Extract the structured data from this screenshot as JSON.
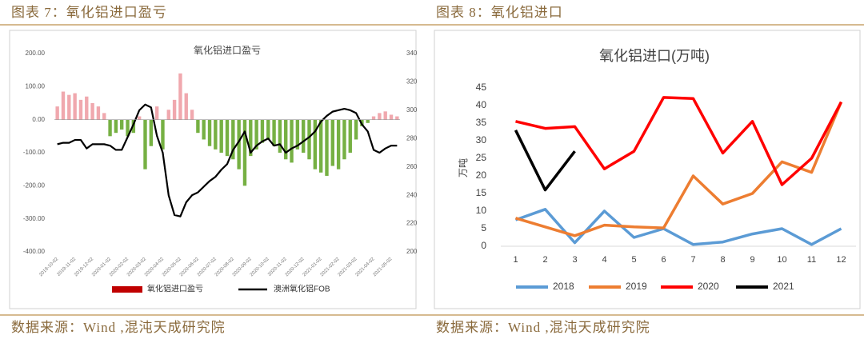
{
  "headings": [
    "图表 7：氧化铝进口盈亏",
    "图表 8：氧化铝进口"
  ],
  "sources": [
    "数据来源：Wind ,混沌天成研究院",
    "数据来源：Wind ,混沌天成研究院"
  ],
  "chart_data": [
    {
      "type": "bar",
      "title": "氧化铝进口盈亏",
      "categories": [
        "2019-10-02",
        null,
        null,
        "2019-11-02",
        null,
        null,
        "2019-12-02",
        null,
        null,
        "2020-01-02",
        null,
        null,
        "2020-02-02",
        null,
        null,
        "2020-03-02",
        null,
        null,
        "2020-04-02",
        null,
        null,
        "2020-05-02",
        null,
        null,
        "2020-06-02",
        null,
        null,
        "2020-07-02",
        null,
        null,
        "2020-08-02",
        null,
        null,
        "2020-09-02",
        null,
        null,
        "2020-10-02",
        null,
        null,
        "2020-11-02",
        null,
        null,
        "2020-12-02",
        null,
        null,
        "2021-01-02",
        null,
        null,
        "2021-02-02",
        null,
        null,
        "2021-03-02",
        null,
        null,
        "2021-04-02",
        null,
        null,
        "2021-05-02",
        null
      ],
      "series": [
        {
          "name": "氧化铝进口盈亏",
          "color": "#c00000",
          "positive_color": "#f0a8ae",
          "negative_color": "#76b043",
          "values": [
            40,
            85,
            75,
            80,
            60,
            70,
            50,
            40,
            20,
            -50,
            -40,
            -30,
            -50,
            -40,
            10,
            -150,
            -80,
            40,
            -90,
            30,
            60,
            140,
            80,
            30,
            -40,
            -60,
            -80,
            -90,
            -100,
            -110,
            -120,
            -150,
            -200,
            -110,
            -90,
            -70,
            -60,
            -80,
            -100,
            -120,
            -130,
            -90,
            -100,
            -120,
            -150,
            -160,
            -170,
            -140,
            -150,
            -120,
            -100,
            -60,
            -20,
            -10,
            10,
            20,
            25,
            15,
            10
          ]
        },
        {
          "name": "澳洲氧化铝FOB",
          "type": "line",
          "axis": "y2",
          "color": "#000000",
          "values": [
            276,
            277,
            277,
            279,
            279,
            273,
            276,
            276,
            276,
            275,
            272,
            272,
            281,
            290,
            300,
            304,
            302,
            282,
            270,
            240,
            226,
            225,
            235,
            240,
            242,
            246,
            250,
            253,
            258,
            262,
            272,
            278,
            285,
            270,
            275,
            278,
            280,
            275,
            276,
            270,
            273,
            275,
            278,
            281,
            285,
            292,
            296,
            299,
            300,
            301,
            300,
            298,
            290,
            285,
            272,
            270,
            273,
            275,
            275
          ]
        }
      ],
      "ylim": [
        -400,
        200
      ],
      "yticks": [
        {
          "value": -400,
          "label": "-400.00"
        },
        {
          "value": -300,
          "label": "-300.00"
        },
        {
          "value": -200,
          "label": "-200.00"
        },
        {
          "value": -100,
          "label": "-100.00"
        },
        {
          "value": 0,
          "label": "0.00"
        },
        {
          "value": 100,
          "label": "100.00"
        },
        {
          "value": 200,
          "label": "200.00"
        }
      ],
      "y2lim": [
        200,
        340
      ],
      "y2ticks": [
        200,
        220,
        240,
        260,
        280,
        300,
        320,
        340
      ],
      "grid": false
    },
    {
      "type": "line",
      "title": "氧化铝进口(万吨)",
      "y_label": "万吨",
      "x": [
        1,
        2,
        3,
        4,
        5,
        6,
        7,
        8,
        9,
        10,
        11,
        12
      ],
      "series": [
        {
          "name": "2018",
          "color": "#5b9bd5",
          "values": [
            7.5,
            10.5,
            1,
            10,
            2.5,
            5,
            0.5,
            1.2,
            3.5,
            5,
            0.5,
            5
          ]
        },
        {
          "name": "2019",
          "color": "#ed7d31",
          "values": [
            8,
            5.5,
            3,
            6,
            5.5,
            5.2,
            20,
            12,
            15,
            24,
            21,
            41
          ]
        },
        {
          "name": "2020",
          "color": "#ff0000",
          "values": [
            35.5,
            33.5,
            34,
            22,
            27,
            42.3,
            42,
            26.5,
            35.5,
            17.5,
            25,
            41
          ]
        },
        {
          "name": "2021",
          "color": "#000000",
          "values": [
            33,
            16,
            27,
            null,
            null,
            null,
            null,
            null,
            null,
            null,
            null,
            null
          ]
        }
      ],
      "xlim": [
        0.5,
        12.5
      ],
      "xticks": [
        1,
        2,
        3,
        4,
        5,
        6,
        7,
        8,
        9,
        10,
        11,
        12
      ],
      "ylim": [
        0,
        45
      ],
      "yticks": [
        0,
        5,
        10,
        15,
        20,
        25,
        30,
        35,
        40,
        45
      ],
      "grid": false
    }
  ]
}
